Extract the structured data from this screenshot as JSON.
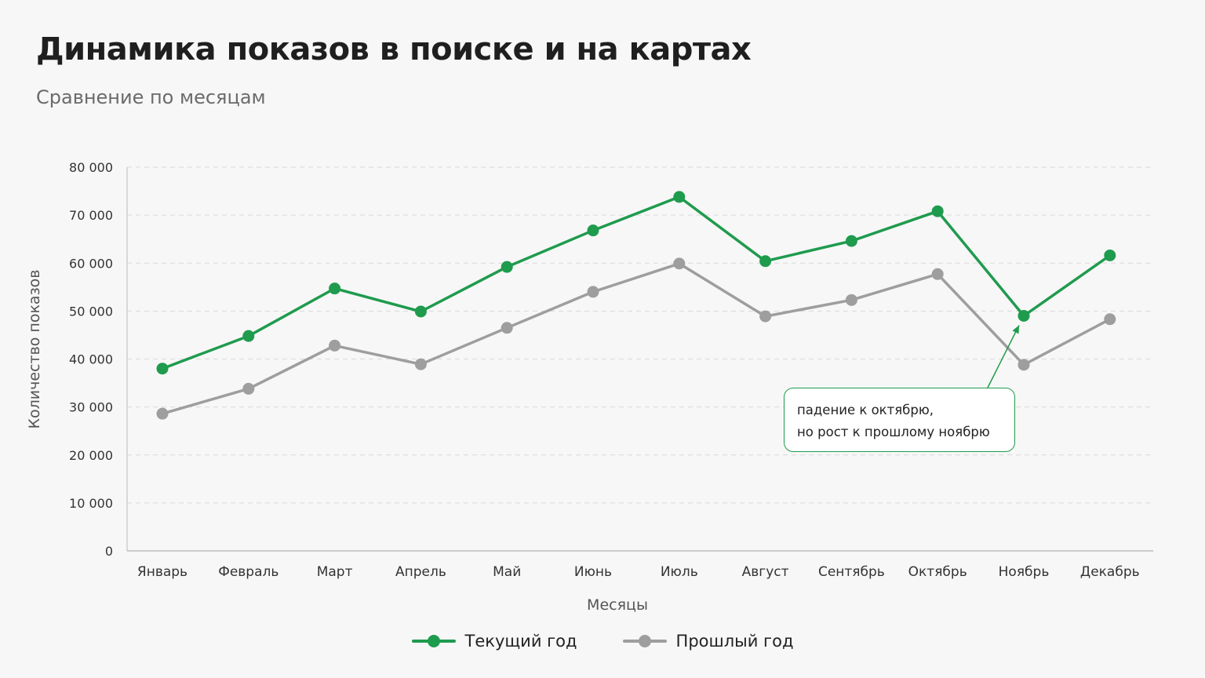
{
  "header": {
    "title": "Динамика показов в поиске и на картах",
    "subtitle": "Сравнение по месяцам"
  },
  "chart_data": {
    "type": "line",
    "title": "Динамика показов в поиске и на картах",
    "subtitle": "Сравнение по месяцам",
    "xlabel": "Месяцы",
    "ylabel": "Количество показов",
    "ylim": [
      0,
      80000
    ],
    "yticks": [
      {
        "value": 0,
        "label": "0"
      },
      {
        "value": 10000,
        "label": "10 000"
      },
      {
        "value": 20000,
        "label": "20 000"
      },
      {
        "value": 30000,
        "label": "30 000"
      },
      {
        "value": 40000,
        "label": "40 000"
      },
      {
        "value": 50000,
        "label": "50 000"
      },
      {
        "value": 60000,
        "label": "60 000"
      },
      {
        "value": 70000,
        "label": "70 000"
      },
      {
        "value": 80000,
        "label": "80 000"
      }
    ],
    "grid": true,
    "legend_position": "bottom-center",
    "categories": [
      "Январь",
      "Февраль",
      "Март",
      "Апрель",
      "Май",
      "Июнь",
      "Июль",
      "Август",
      "Сентябрь",
      "Октябрь",
      "Ноябрь",
      "Декабрь"
    ],
    "series": [
      {
        "name": "Текущий год",
        "color": "#1f9b4e",
        "values": [
          38000,
          44800,
          54700,
          49900,
          59200,
          66800,
          73800,
          60400,
          64600,
          70800,
          49000,
          61600
        ]
      },
      {
        "name": "Прошлый год",
        "color": "#9e9e9e",
        "values": [
          28600,
          33800,
          42800,
          38900,
          46500,
          54000,
          59900,
          48900,
          52300,
          57700,
          38800,
          48300
        ]
      }
    ],
    "annotation": {
      "lines": [
        "падение к октябрю,",
        "но рост к прошлому ноябрю"
      ],
      "target_category": "Ноябрь",
      "target_series": "Текущий год"
    }
  }
}
